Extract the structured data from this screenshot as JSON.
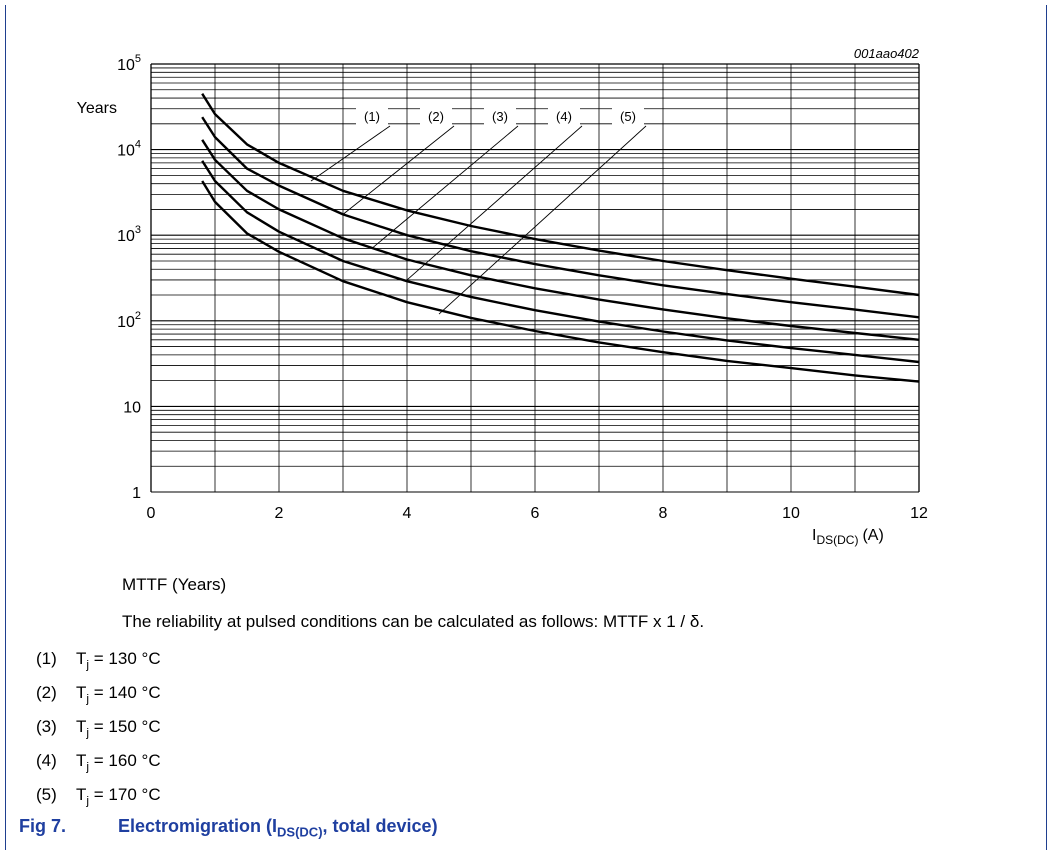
{
  "chart_data": {
    "type": "line",
    "code": "001aao402",
    "ylabel": "Years",
    "xlabel_main": "I",
    "xlabel_sub": "DS(DC)",
    "xlabel_unit": "(A)",
    "xlim": [
      0,
      12
    ],
    "ylim": [
      1,
      100000
    ],
    "yscale": "log",
    "grid": true,
    "x_ticks": [
      "0",
      "2",
      "4",
      "6",
      "8",
      "10",
      "12"
    ],
    "y_ticks": [
      {
        "base": "10",
        "exp": "5",
        "value": 100000
      },
      {
        "base": "10",
        "exp": "4",
        "value": 10000
      },
      {
        "base": "10",
        "exp": "3",
        "value": 1000
      },
      {
        "base": "10",
        "exp": "2",
        "value": 100
      },
      {
        "base": "10",
        "exp": "",
        "value": 10
      },
      {
        "base": "1",
        "exp": "",
        "value": 1
      }
    ],
    "series": [
      {
        "name": "(1)",
        "x": [
          0.8,
          1,
          1.5,
          2,
          3,
          4,
          5,
          6,
          7,
          8,
          9,
          10,
          11,
          12
        ],
        "y": [
          45000,
          26000,
          11500,
          7000,
          3300,
          1950,
          1280,
          900,
          660,
          500,
          390,
          310,
          250,
          200
        ]
      },
      {
        "name": "(2)",
        "x": [
          0.8,
          1,
          1.5,
          2,
          3,
          4,
          5,
          6,
          7,
          8,
          9,
          10,
          11,
          12
        ],
        "y": [
          24000,
          14000,
          6000,
          3800,
          1750,
          1000,
          650,
          460,
          340,
          260,
          205,
          165,
          135,
          110
        ]
      },
      {
        "name": "(3)",
        "x": [
          0.8,
          1,
          1.5,
          2,
          3,
          4,
          5,
          6,
          7,
          8,
          9,
          10,
          11,
          12
        ],
        "y": [
          13000,
          7600,
          3300,
          2000,
          920,
          520,
          340,
          240,
          177,
          136,
          107,
          87,
          72,
          60
        ]
      },
      {
        "name": "(4)",
        "x": [
          0.8,
          1,
          1.5,
          2,
          3,
          4,
          5,
          6,
          7,
          8,
          9,
          10,
          11,
          12
        ],
        "y": [
          7400,
          4300,
          1850,
          1100,
          500,
          290,
          190,
          133,
          98,
          75,
          59,
          48,
          40,
          33
        ]
      },
      {
        "name": "(5)",
        "x": [
          0.8,
          1,
          1.5,
          2,
          3,
          4,
          5,
          6,
          7,
          8,
          9,
          10,
          11,
          12
        ],
        "y": [
          4300,
          2450,
          1050,
          640,
          290,
          165,
          108,
          76,
          56,
          43,
          34,
          28,
          23,
          19.5
        ]
      }
    ],
    "annotations": [
      {
        "label": "(1)",
        "target_x": 2.5,
        "target_y": 4300
      },
      {
        "label": "(2)",
        "target_x": 3.0,
        "target_y": 1750
      },
      {
        "label": "(3)",
        "target_x": 3.45,
        "target_y": 700
      },
      {
        "label": "(4)",
        "target_x": 4.0,
        "target_y": 300
      },
      {
        "label": "(5)",
        "target_x": 4.5,
        "target_y": 120
      }
    ]
  },
  "caption": {
    "line1": "MTTF (Years)",
    "line2": "The reliability at pulsed conditions can be calculated as follows: MTTF x 1 / δ."
  },
  "legend": [
    {
      "num": "(1)",
      "sym": "T",
      "sub": "j",
      "text": " = 130 °C"
    },
    {
      "num": "(2)",
      "sym": "T",
      "sub": "j",
      "text": " = 140 °C"
    },
    {
      "num": "(3)",
      "sym": "T",
      "sub": "j",
      "text": " = 150 °C"
    },
    {
      "num": "(4)",
      "sym": "T",
      "sub": "j",
      "text": " = 160 °C"
    },
    {
      "num": "(5)",
      "sym": "T",
      "sub": "j",
      "text": " = 170 °C"
    }
  ],
  "figure": {
    "label": "Fig 7.",
    "title_pre": "Electromigration (I",
    "title_sub": "DS(DC)",
    "title_post": ", total device)"
  },
  "colors": {
    "title": "#1f3fa0",
    "frame": "#1f3f8f",
    "curve": "#000000",
    "grid": "#000000"
  }
}
